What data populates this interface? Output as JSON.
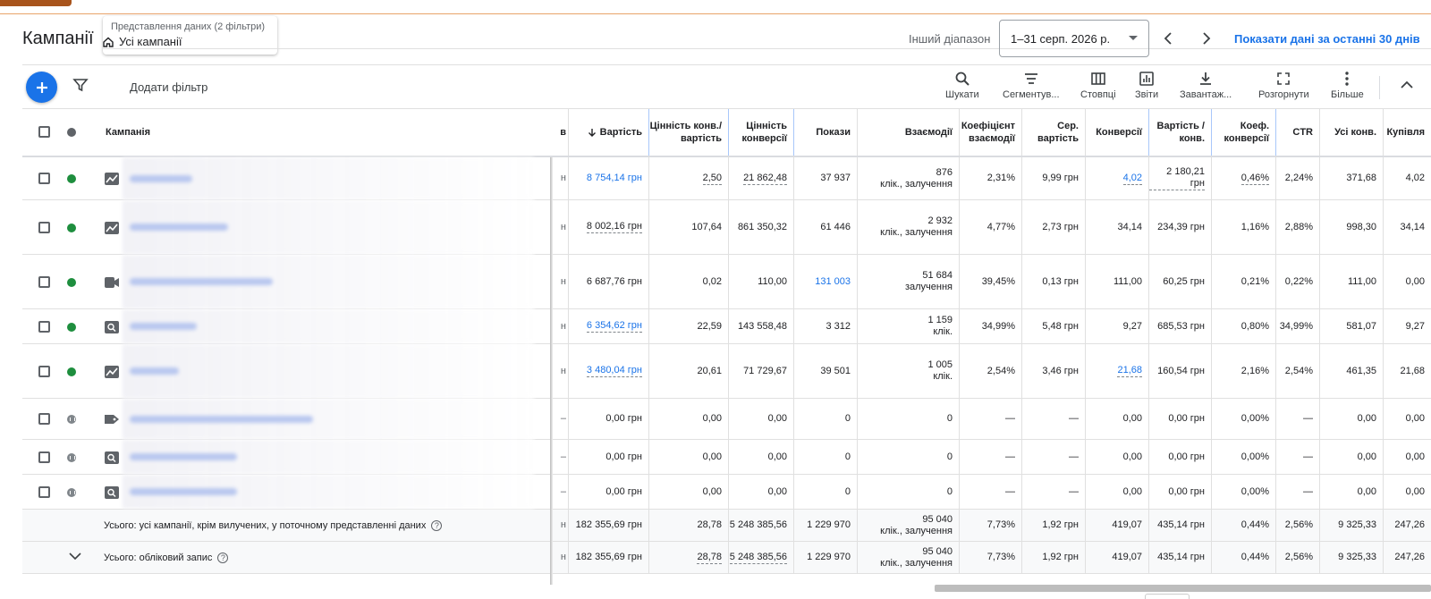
{
  "header": {
    "title": "Кампанії",
    "view_subtitle": "Представлення даних (2 фільтри)",
    "view_name": "Усі кампанії",
    "range_label": "Інший діапазон",
    "date_range": "1–31 серп. 2026 р.",
    "last30_link": "Показати дані за останні 30 днів"
  },
  "toolbar": {
    "add_filter": "Додати фільтр",
    "tools": [
      "Шукати",
      "Сегментув...",
      "Стовпці",
      "Звіти",
      "Завантаж...",
      "Розгорнути",
      "Більше"
    ]
  },
  "columns": {
    "campaign": "Кампанія",
    "cut": "в",
    "cost": "Вартість",
    "conv_value_cost": "Цінність конв./вартість",
    "conv_value": "Цінність конверсії",
    "impr": "Покази",
    "interactions": "Взаємодії",
    "int_rate": "Коефіцієнт взаємодії",
    "avg_cost": "Сер. вартість",
    "conversions": "Конверсії",
    "cost_conv": "Вартість / конв.",
    "conv_rate": "Коеф. конверсії",
    "ctr": "CTR",
    "all_conv": "Усі конв.",
    "purchase": "Купівля"
  },
  "rows": [
    {
      "status": "enabled",
      "type": "display",
      "cut": "н",
      "cost": "8 754,14 грн",
      "cvc": "2,50",
      "cv": "21 862,48",
      "impr": "37 937",
      "int1": "876",
      "int2": "клік., залучення",
      "ir": "2,31%",
      "ac": "9,99 грн",
      "conv": "4,02",
      "cpc": "2 180,21 грн",
      "cr": "0,46%",
      "ctr": "2,24%",
      "allc": "371,68",
      "pur": "4,02"
    },
    {
      "status": "enabled",
      "type": "display",
      "cut": "н",
      "cost": "8 002,16 грн",
      "cvc": "107,64",
      "cv": "861 350,32",
      "impr": "61 446",
      "int1": "2 932",
      "int2": "клік., залучення",
      "ir": "4,77%",
      "ac": "2,73 грн",
      "conv": "34,14",
      "cpc": "234,39 грн",
      "cr": "1,16%",
      "ctr": "2,88%",
      "allc": "998,30",
      "pur": "34,14"
    },
    {
      "status": "enabled",
      "type": "video",
      "cut": "н",
      "cost": "6 687,76 грн",
      "cvc": "0,02",
      "cv": "110,00",
      "impr": "131 003",
      "int1": "51 684",
      "int2": "залучення",
      "ir": "39,45%",
      "ac": "0,13 грн",
      "conv": "111,00",
      "cpc": "60,25 грн",
      "cr": "0,21%",
      "ctr": "0,22%",
      "allc": "111,00",
      "pur": "0,00"
    },
    {
      "status": "enabled",
      "type": "search",
      "cut": "н",
      "cost": "6 354,62 грн",
      "cvc": "22,59",
      "cv": "143 558,48",
      "impr": "3 312",
      "int1": "1 159",
      "int2": "клік.",
      "ir": "34,99%",
      "ac": "5,48 грн",
      "conv": "9,27",
      "cpc": "685,53 грн",
      "cr": "0,80%",
      "ctr": "34,99%",
      "allc": "581,07",
      "pur": "9,27"
    },
    {
      "status": "enabled",
      "type": "display",
      "cut": "н",
      "cost": "3 480,04 грн",
      "cvc": "20,61",
      "cv": "71 729,67",
      "impr": "39 501",
      "int1": "1 005",
      "int2": "клік.",
      "ir": "2,54%",
      "ac": "3,46 грн",
      "conv": "21,68",
      "cpc": "160,54 грн",
      "cr": "2,16%",
      "ctr": "2,54%",
      "allc": "461,35",
      "pur": "21,68"
    },
    {
      "status": "paused",
      "type": "shopping",
      "cut": "–",
      "cost": "0,00 грн",
      "cvc": "0,00",
      "cv": "0,00",
      "impr": "0",
      "int1": "0",
      "int2": "",
      "ir": "—",
      "ac": "—",
      "conv": "0,00",
      "cpc": "0,00 грн",
      "cr": "0,00%",
      "ctr": "—",
      "allc": "0,00",
      "pur": "0,00"
    },
    {
      "status": "paused",
      "type": "search",
      "cut": "–",
      "cost": "0,00 грн",
      "cvc": "0,00",
      "cv": "0,00",
      "impr": "0",
      "int1": "0",
      "int2": "",
      "ir": "—",
      "ac": "—",
      "conv": "0,00",
      "cpc": "0,00 грн",
      "cr": "0,00%",
      "ctr": "—",
      "allc": "0,00",
      "pur": "0,00"
    },
    {
      "status": "paused",
      "type": "search",
      "cut": "–",
      "cost": "0,00 грн",
      "cvc": "0,00",
      "cv": "0,00",
      "impr": "0",
      "int1": "0",
      "int2": "",
      "ir": "—",
      "ac": "—",
      "conv": "0,00",
      "cpc": "0,00 грн",
      "cr": "0,00%",
      "ctr": "—",
      "allc": "0,00",
      "pur": "0,00"
    }
  ],
  "summary": [
    {
      "label": "Усього: усі кампанії, крім вилучених, у поточному представленні даних",
      "cut": "н",
      "cost": "182 355,69 грн",
      "cvc": "28,78",
      "cv": "5 248 385,56",
      "impr": "1 229 970",
      "int1": "95 040",
      "int2": "клік., залучення",
      "ir": "7,73%",
      "ac": "1,92 грн",
      "conv": "419,07",
      "cpc": "435,14 грн",
      "cr": "0,44%",
      "ctr": "2,56%",
      "allc": "9 325,33",
      "pur": "247,26"
    },
    {
      "label": "Усього: обліковий запис",
      "cut": "н",
      "cost": "182 355,69 грн",
      "cvc": "28,78",
      "cv": "5 248 385,56",
      "impr": "1 229 970",
      "int1": "95 040",
      "int2": "клік., залучення",
      "ir": "7,73%",
      "ac": "1,92 грн",
      "conv": "419,07",
      "cpc": "435,14 грн",
      "cr": "0,44%",
      "ctr": "2,56%",
      "allc": "9 325,33",
      "pur": "247,26"
    }
  ],
  "colors": {
    "accent": "#1a73e8",
    "enabled": "#1e8e3e",
    "paused": "#80868b"
  }
}
